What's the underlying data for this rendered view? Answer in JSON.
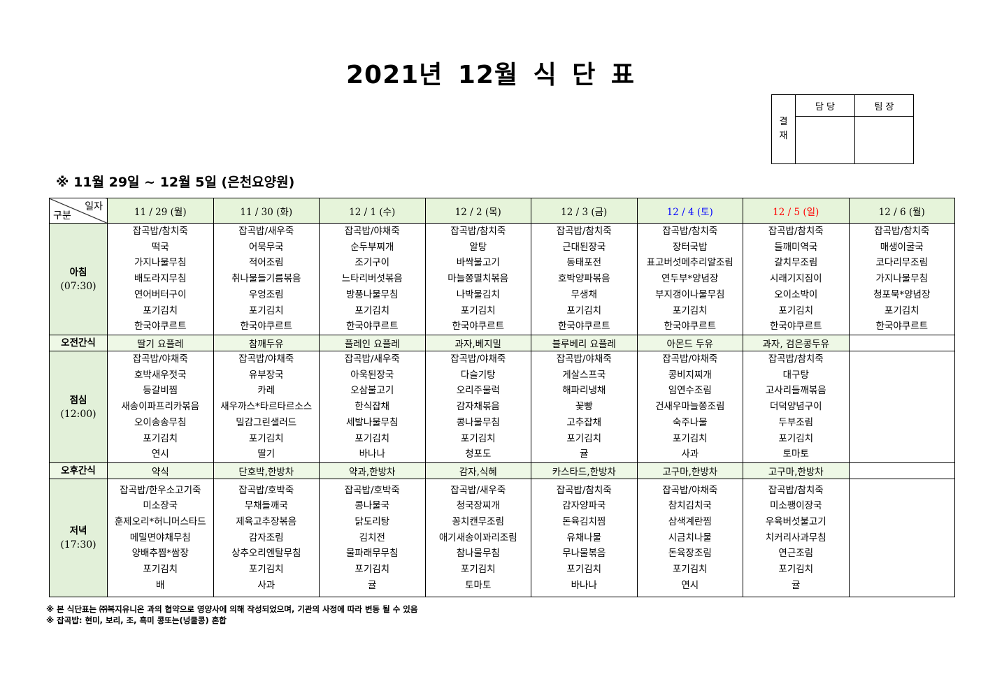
{
  "title": "2021년 12월 식 단 표",
  "approval": {
    "label": "결\n재",
    "label_top": "결",
    "label_bottom": "재",
    "col1": "담 당",
    "col2": "팀 장"
  },
  "subtitle": "※ 11월 29일 ~ 12월 5일 (은천요양원)",
  "corner": {
    "top": "일자",
    "bottom": "구분"
  },
  "colors": {
    "header_bg": "#e6f4da",
    "label_bg": "#e2f0d9",
    "saturday": "#0000ff",
    "sunday": "#ff0000"
  },
  "days": [
    {
      "label": "11 / 29 (월)",
      "color": "#000000"
    },
    {
      "label": "11 / 30 (화)",
      "color": "#000000"
    },
    {
      "label": "12 / 1 (수)",
      "color": "#000000"
    },
    {
      "label": "12 / 2 (목)",
      "color": "#000000"
    },
    {
      "label": "12 / 3 (금)",
      "color": "#000000"
    },
    {
      "label": "12 / 4 (토)",
      "color": "#0000ff"
    },
    {
      "label": "12 / 5 (일)",
      "color": "#ff0000"
    },
    {
      "label": "12 / 6 (월)",
      "color": "#000000"
    }
  ],
  "rows": [
    {
      "type": "meal",
      "name": "아침",
      "time": "(07:30)",
      "cells": [
        [
          "잡곡밥/참치죽",
          "떡국",
          "가지나물무침",
          "배도라지무침",
          "연어버터구이",
          "포기김치",
          "한국야쿠르트"
        ],
        [
          "잡곡밥/새우죽",
          "어묵무국",
          "적어조림",
          "취나물들기름볶음",
          "우엉조림",
          "포기김치",
          "한국야쿠르트"
        ],
        [
          "잡곡밥/야채죽",
          "순두부찌개",
          "조기구이",
          "느타리버섯볶음",
          "방풍나물무침",
          "포기김치",
          "한국야쿠르트"
        ],
        [
          "잡곡밥/참치죽",
          "알탕",
          "바싹불고기",
          "마늘쫑멸치볶음",
          "나박물김치",
          "포기김치",
          "한국야쿠르트"
        ],
        [
          "잡곡밥/참치죽",
          "근대된장국",
          "동태포전",
          "호박양파볶음",
          "무생채",
          "포기김치",
          "한국야쿠르트"
        ],
        [
          "잡곡밥/참치죽",
          "장터국밥",
          "표고버섯메추리알조림",
          "연두부*양념장",
          "부지갱이나물무침",
          "포기김치",
          "한국야쿠르트"
        ],
        [
          "잡곡밥/참치죽",
          "들깨미역국",
          "갈치무조림",
          "시래기지짐이",
          "오이소박이",
          "포기김치",
          "한국야쿠르트"
        ],
        [
          "잡곡밥/참치죽",
          "매생이굴국",
          "코다리무조림",
          "가지나물무침",
          "청포묵*양념장",
          "포기김치",
          "한국야쿠르트"
        ]
      ]
    },
    {
      "type": "snack",
      "name": "오전간식",
      "cells": [
        "딸기 요플레",
        "참깨두유",
        "플레인 요플레",
        "과자,베지밀",
        "블루베리 요플레",
        "아몬드 두유",
        "과자, 검은콩두유",
        ""
      ]
    },
    {
      "type": "meal",
      "name": "점심",
      "time": "(12:00)",
      "cells": [
        [
          "잡곡밥/야채죽",
          "호박새우젓국",
          "등갈비찜",
          "새송이파프리카볶음",
          "오이송송무침",
          "포기김치",
          "연시"
        ],
        [
          "잡곡밥/야채죽",
          "유부장국",
          "카레",
          "새우까스*타르타르소스",
          "밀감그린샐러드",
          "포기김치",
          "딸기"
        ],
        [
          "잡곡밥/새우죽",
          "아욱된장국",
          "오삼불고기",
          "한식잡채",
          "세발나물무침",
          "포기김치",
          "바나나"
        ],
        [
          "잡곡밥/야채죽",
          "다슬기탕",
          "오리주물럭",
          "감자채볶음",
          "콩나물무침",
          "포기김치",
          "청포도"
        ],
        [
          "잡곡밥/야채죽",
          "게살스프국",
          "해파리냉채",
          "꽃빵",
          "고추잡채",
          "포기김치",
          "귤"
        ],
        [
          "잡곡밥/야채죽",
          "콩비지찌개",
          "임연수조림",
          "건새우마늘쫑조림",
          "숙주나물",
          "포기김치",
          "사과"
        ],
        [
          "잡곡밥/참치죽",
          "대구탕",
          "고사리들깨볶음",
          "더덕양념구이",
          "두부조림",
          "포기김치",
          "토마토"
        ],
        []
      ]
    },
    {
      "type": "snack",
      "name": "오후간식",
      "cells": [
        "약식",
        "단호박,한방차",
        "약과,한방차",
        "감자,식혜",
        "카스타드,한방차",
        "고구마,한방차",
        "고구마,한방차",
        ""
      ]
    },
    {
      "type": "meal",
      "name": "저녁",
      "time": "(17:30)",
      "cells": [
        [
          "잡곡밥/한우소고기죽",
          "미소장국",
          "훈제오리*허니머스타드",
          "메밀면야채무침",
          "양배추찜*쌈장",
          "포기김치",
          "배"
        ],
        [
          "잡곡밥/호박죽",
          "무채들깨국",
          "제육고추장볶음",
          "감자조림",
          "상추오리엔탈무침",
          "포기김치",
          "사과"
        ],
        [
          "잡곡밥/호박죽",
          "콩나물국",
          "닭도리탕",
          "김치전",
          "물파래무무침",
          "포기김치",
          "귤"
        ],
        [
          "잡곡밥/새우죽",
          "청국장찌개",
          "꽁치캔무조림",
          "애기새송이꽈리조림",
          "참나물무침",
          "포기김치",
          "토마토"
        ],
        [
          "잡곡밥/참치죽",
          "감자양파국",
          "돈육김치찜",
          "유채나물",
          "무나물볶음",
          "포기김치",
          "바나나"
        ],
        [
          "잡곡밥/야채죽",
          "참치김치국",
          "삼색계란찜",
          "시금치나물",
          "돈육장조림",
          "포기김치",
          "연시"
        ],
        [
          "잡곡밥/참치죽",
          "미소팽이장국",
          "우육버섯불고기",
          "치커리사과무침",
          "연근조림",
          "포기김치",
          "귤"
        ],
        []
      ]
    }
  ],
  "footer": [
    "※ 본 식단표는 ㈜복지유니온 과의 협약으로 영양사에 의해 작성되었으며, 기관의 사정에 따라 변동 될 수 있음",
    "※ 잡곡밥: 현미, 보리, 조, 흑미 콩또는(넝쿨콩) 혼합"
  ]
}
